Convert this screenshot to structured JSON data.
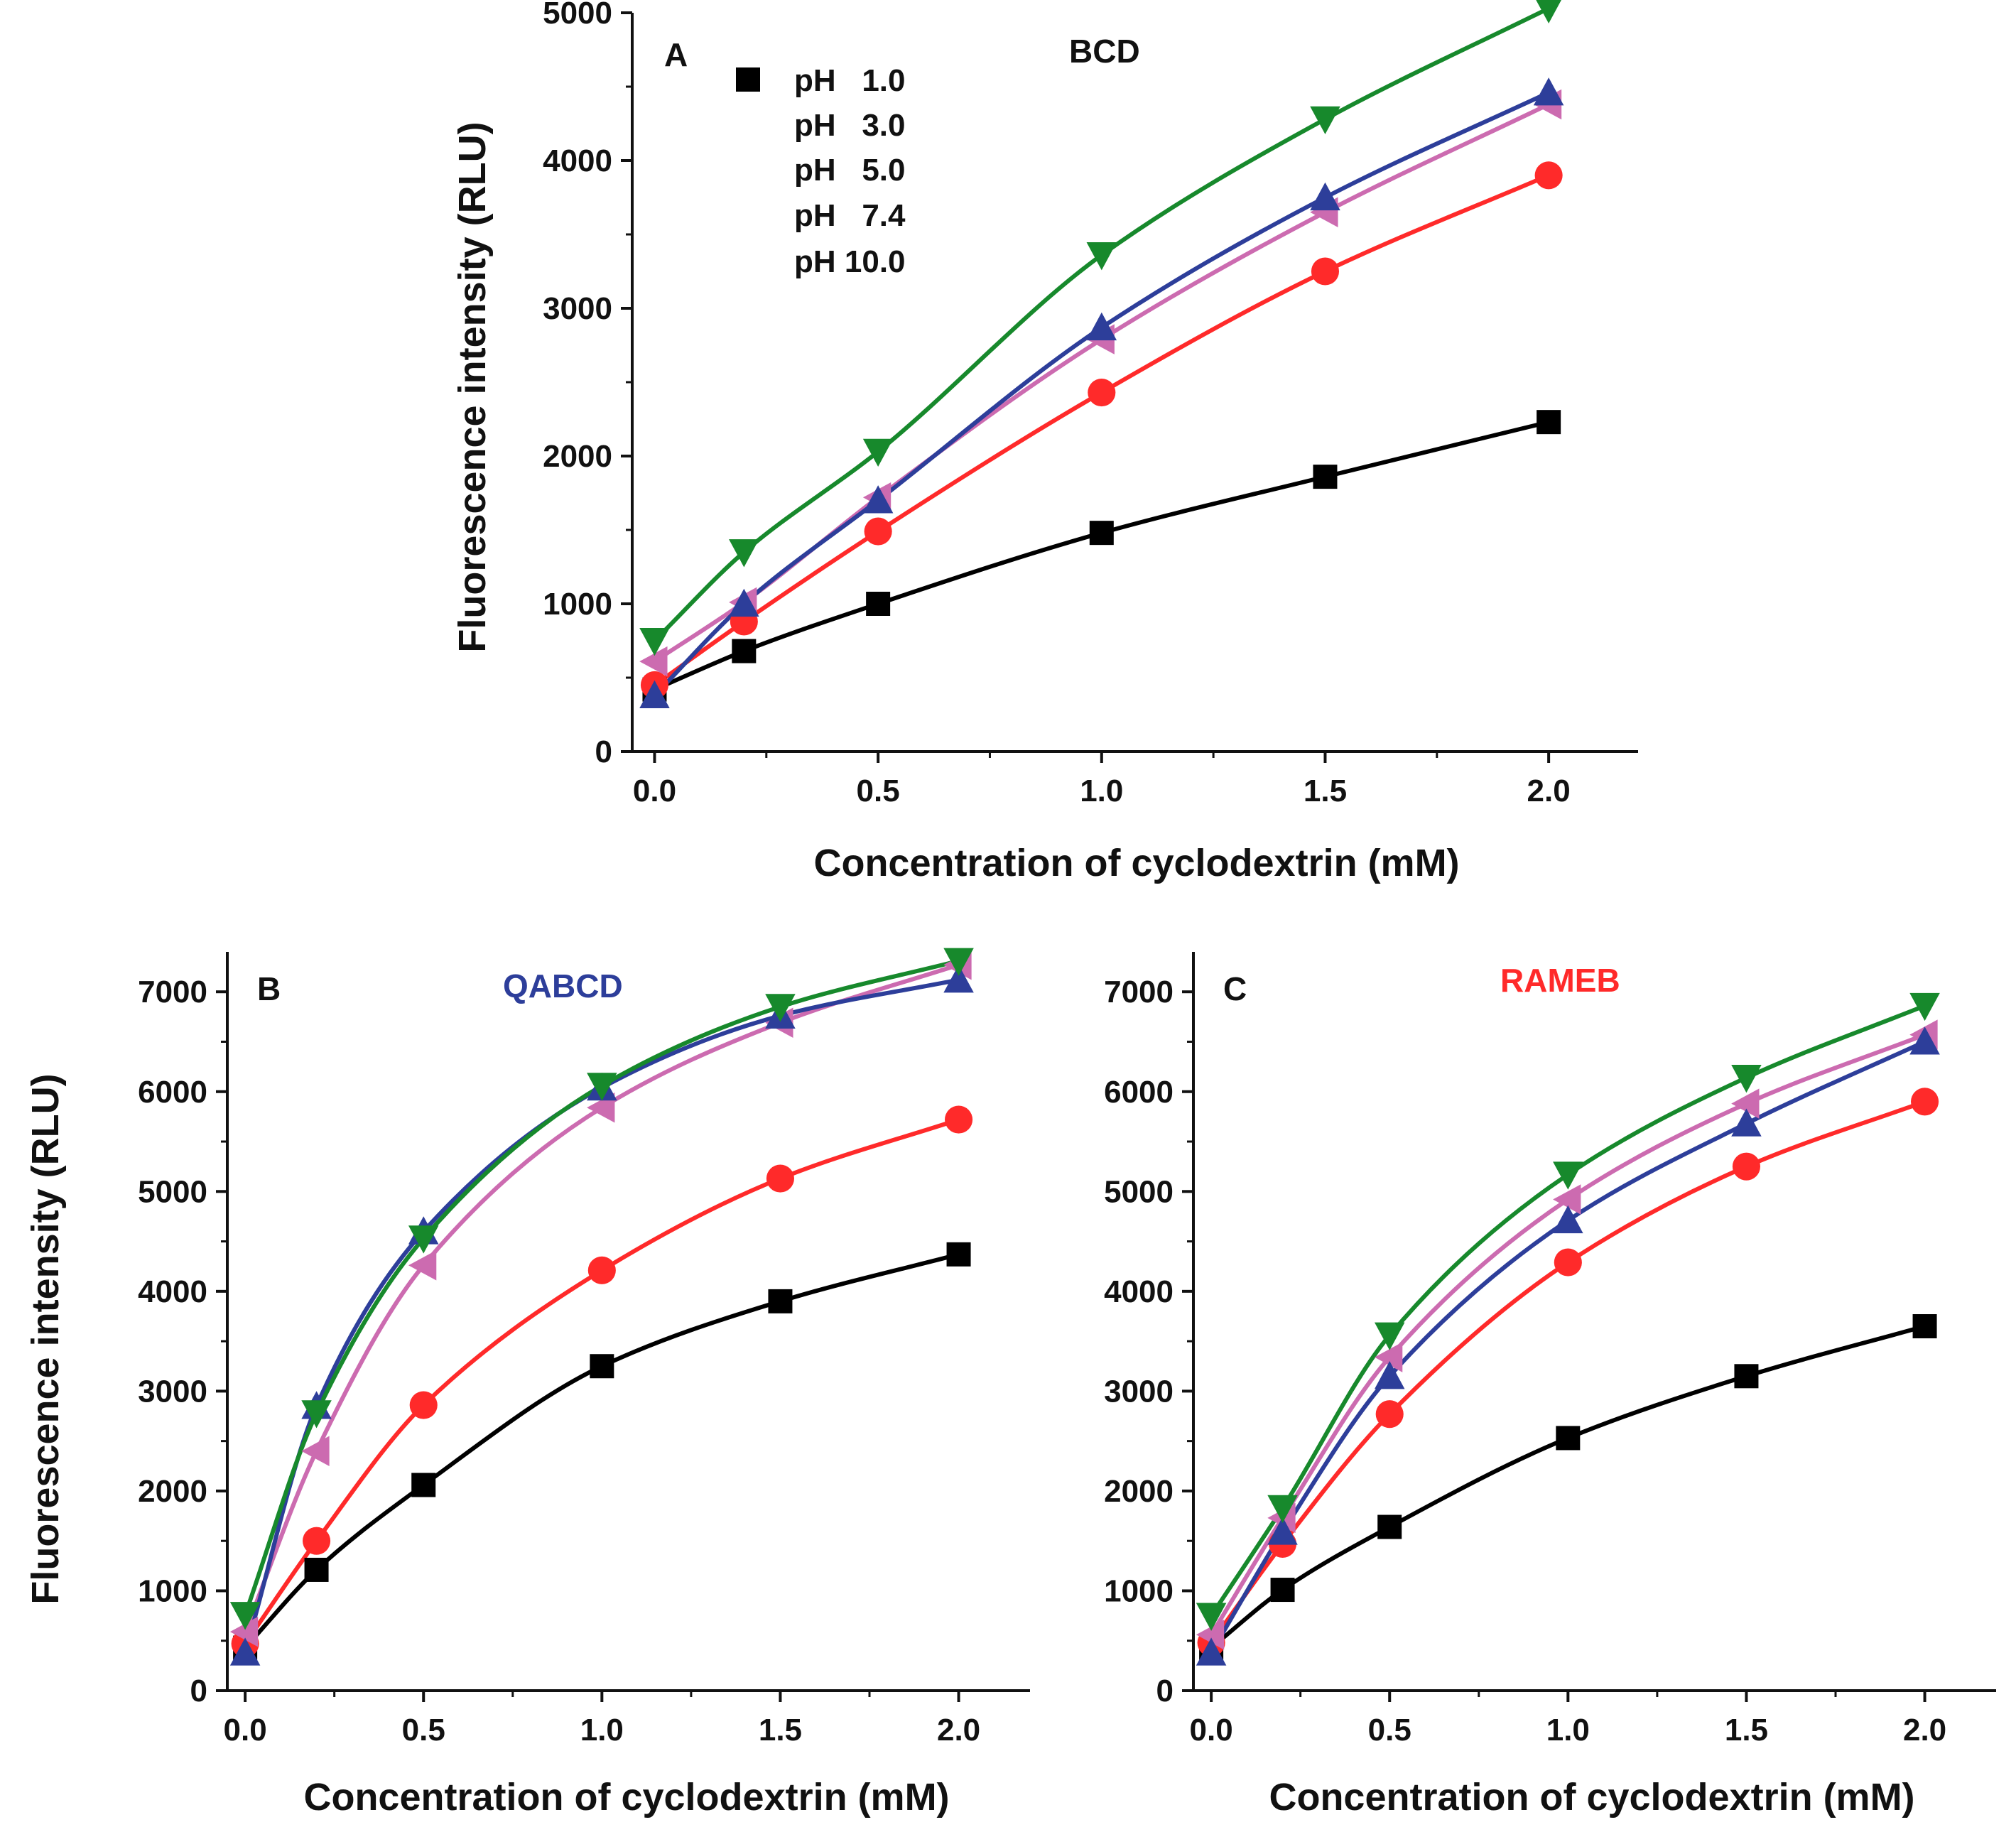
{
  "figure": {
    "xlabel": "Concentration of cyclodextrin (mM)",
    "ylabel": "Fluorescence intensity (RLU)"
  },
  "legend": [
    {
      "label": "pH   1.0",
      "color": "#000000",
      "marker": "square"
    },
    {
      "label": "pH   3.0",
      "color": "#ff2a2a",
      "marker": "circle"
    },
    {
      "label": "pH   5.0",
      "color": "#2d3e9a",
      "marker": "triangle-up"
    },
    {
      "label": "pH   7.4",
      "color": "#17892c",
      "marker": "triangle-down"
    },
    {
      "label": "pH 10.0",
      "color": "#cc6bb0",
      "marker": "triangle-left"
    }
  ],
  "chart_data": [
    {
      "type": "line",
      "panel": "A",
      "title": "BCD",
      "title_color": "#111111",
      "xlabel": "Concentration of cyclodextrin (mM)",
      "ylabel": "Fluorescence intensity (RLU)",
      "xlim": [
        -0.05,
        2.2
      ],
      "ylim": [
        0,
        5000
      ],
      "xticks": [
        "0.0",
        "0.5",
        "1.0",
        "1.5",
        "2.0"
      ],
      "yticks": [
        "0",
        "1000",
        "2000",
        "3000",
        "4000",
        "5000"
      ],
      "x": [
        0,
        0.2,
        0.5,
        1.0,
        1.5,
        2.0
      ],
      "series": [
        {
          "name": "pH   1.0",
          "values": [
            420,
            680,
            1000,
            1480,
            1860,
            2230
          ]
        },
        {
          "name": "pH   3.0",
          "values": [
            450,
            880,
            1490,
            2430,
            3250,
            3900
          ]
        },
        {
          "name": "pH   5.0",
          "values": [
            380,
            1000,
            1700,
            2870,
            3750,
            4460
          ]
        },
        {
          "name": "pH   7.4",
          "values": [
            750,
            1350,
            2030,
            3360,
            4280,
            5030
          ]
        },
        {
          "name": "pH 10.0",
          "values": [
            610,
            1010,
            1720,
            2790,
            3650,
            4380
          ]
        }
      ]
    },
    {
      "type": "line",
      "panel": "B",
      "title": "QABCD",
      "title_color": "#2d3e9a",
      "xlabel": "Concentration of cyclodextrin (mM)",
      "ylabel": "Fluorescence intensity (RLU)",
      "xlim": [
        -0.05,
        2.2
      ],
      "ylim": [
        0,
        7400
      ],
      "xticks": [
        "0.0",
        "0.5",
        "1.0",
        "1.5",
        "2.0"
      ],
      "yticks": [
        "0",
        "1000",
        "2000",
        "3000",
        "4000",
        "5000",
        "6000",
        "7000"
      ],
      "x": [
        0,
        0.2,
        0.5,
        1.0,
        1.5,
        2.0
      ],
      "series": [
        {
          "name": "pH   1.0",
          "values": [
            430,
            1210,
            2060,
            3250,
            3900,
            4370
          ]
        },
        {
          "name": "pH   3.0",
          "values": [
            470,
            1500,
            2860,
            4210,
            5130,
            5720
          ]
        },
        {
          "name": "pH   5.0",
          "values": [
            380,
            2850,
            4600,
            6040,
            6760,
            7120
          ]
        },
        {
          "name": "pH   7.4",
          "values": [
            760,
            2780,
            4530,
            6060,
            6850,
            7310
          ]
        },
        {
          "name": "pH 10.0",
          "values": [
            590,
            2400,
            4260,
            5840,
            6690,
            7270
          ]
        }
      ]
    },
    {
      "type": "line",
      "panel": "C",
      "title": "RAMEB",
      "title_color": "#ff2a2a",
      "xlabel": "Concentration of cyclodextrin (mM)",
      "ylabel": "",
      "xlim": [
        -0.05,
        2.2
      ],
      "ylim": [
        0,
        7400
      ],
      "xticks": [
        "0.0",
        "0.5",
        "1.0",
        "1.5",
        "2.0"
      ],
      "yticks": [
        "0",
        "1000",
        "2000",
        "3000",
        "4000",
        "5000",
        "6000",
        "7000"
      ],
      "x": [
        0,
        0.2,
        0.5,
        1.0,
        1.5,
        2.0
      ],
      "series": [
        {
          "name": "pH   1.0",
          "values": [
            430,
            1010,
            1640,
            2530,
            3150,
            3650
          ]
        },
        {
          "name": "pH   3.0",
          "values": [
            480,
            1470,
            2770,
            4290,
            5250,
            5900
          ]
        },
        {
          "name": "pH   5.0",
          "values": [
            380,
            1590,
            3150,
            4710,
            5680,
            6500
          ]
        },
        {
          "name": "pH   7.4",
          "values": [
            750,
            1830,
            3560,
            5170,
            6140,
            6860
          ]
        },
        {
          "name": "pH 10.0",
          "values": [
            560,
            1730,
            3340,
            4920,
            5880,
            6570
          ]
        }
      ]
    }
  ]
}
